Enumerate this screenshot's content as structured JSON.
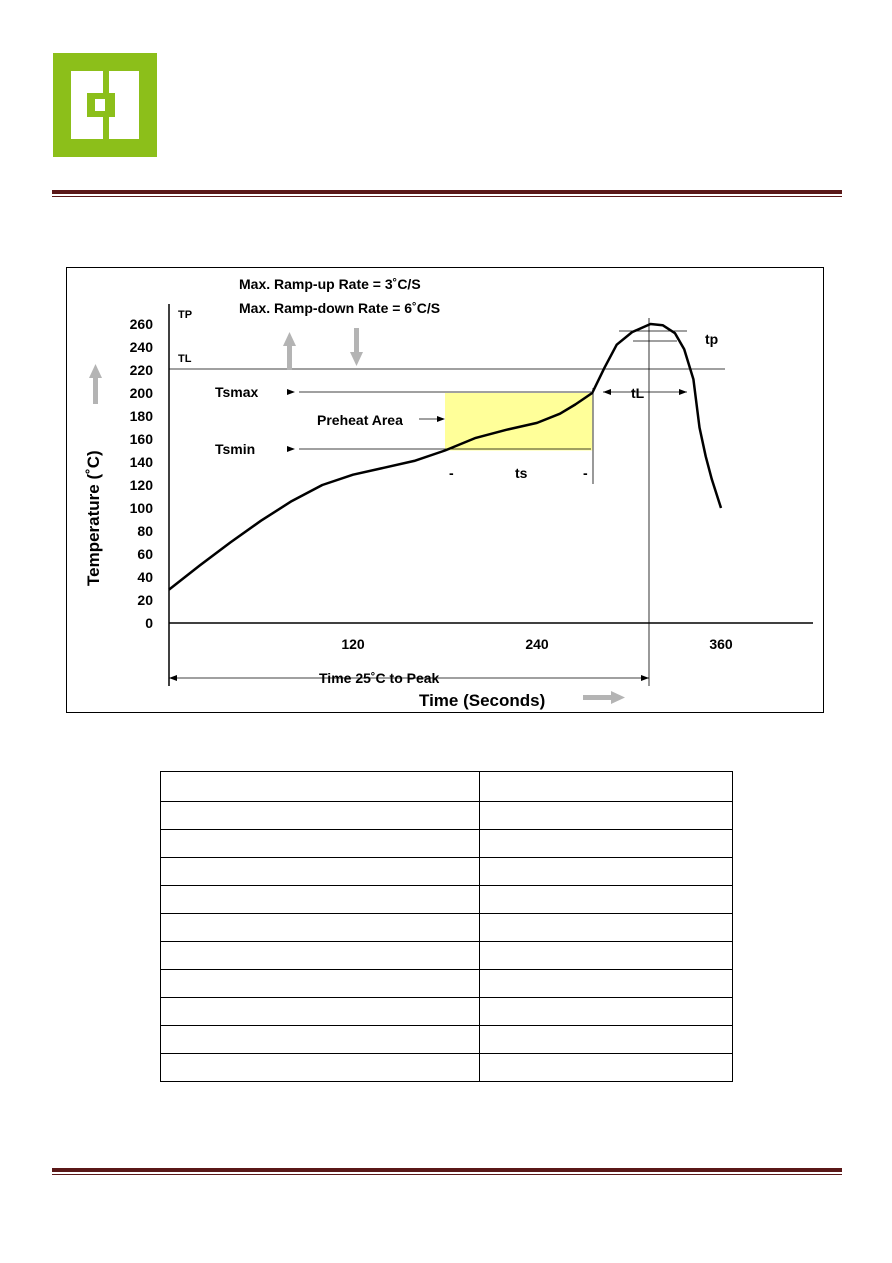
{
  "colors": {
    "logo_green": "#8cbf1a",
    "header_rule": "#5a1818",
    "preheat_fill": "#ffff99",
    "arrow_gray": "#b4b4b4"
  },
  "chart_data": {
    "type": "line",
    "title": "",
    "annotations": {
      "ramp_up": "Max. Ramp-up Rate = 3˚C/S",
      "ramp_down": "Max. Ramp-down Rate = 6˚C/S",
      "tsmax": "Tsmax",
      "tsmin": "Tsmin",
      "preheat": "Preheat Area",
      "ts": "ts",
      "dash": "-",
      "tl": "tL",
      "tp": "tp",
      "tp_marker": "TP",
      "tl_marker": "TL",
      "time_to_peak": "Time 25˚C to Peak"
    },
    "xlabel": "Time (Seconds)",
    "ylabel": "Temperature (˚C)",
    "x_ticks": [
      120,
      240,
      360
    ],
    "y_ticks": [
      0,
      20,
      40,
      60,
      80,
      100,
      120,
      140,
      160,
      180,
      200,
      220,
      240,
      260
    ],
    "xlim": [
      0,
      420
    ],
    "ylim": [
      0,
      280
    ],
    "reference_lines": {
      "TL": 220,
      "Tsmax": 200,
      "Tsmin": 150
    },
    "preheat_region": {
      "x": [
        180,
        276
      ],
      "y": [
        150,
        200
      ]
    },
    "series": [
      {
        "x": [
          0,
          20,
          40,
          60,
          80,
          100,
          120,
          140,
          160,
          180,
          200,
          220,
          240,
          255,
          265,
          276,
          284,
          292,
          302,
          314,
          322,
          330,
          336,
          342,
          346,
          350,
          354,
          360
        ],
        "y": [
          29,
          50,
          70,
          89,
          106,
          120,
          129,
          135,
          141,
          150,
          161,
          168,
          174,
          182,
          190,
          200,
          222,
          242,
          253,
          260,
          259,
          252,
          238,
          212,
          170,
          145,
          125,
          100
        ]
      }
    ]
  },
  "table": {
    "rows": [
      [
        "",
        ""
      ],
      [
        "",
        ""
      ],
      [
        "",
        ""
      ],
      [
        "",
        ""
      ],
      [
        "",
        ""
      ],
      [
        "",
        ""
      ],
      [
        "",
        ""
      ],
      [
        "",
        ""
      ],
      [
        "",
        ""
      ],
      [
        "",
        ""
      ],
      [
        "",
        ""
      ]
    ]
  }
}
